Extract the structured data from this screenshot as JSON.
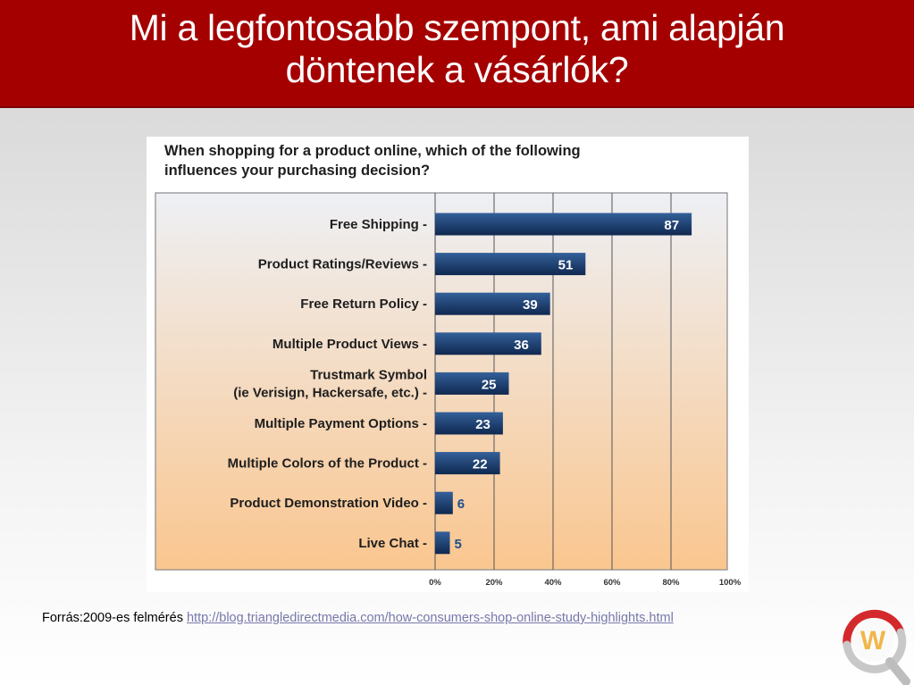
{
  "slide": {
    "title_line1": "Mi a legfontosabb szempont, ami alapján",
    "title_line2": "döntenek a vásárlók?",
    "source_prefix": "Forrás:2009-es felmérés",
    "source_link": "http://blog.triangledirectmedia.com/how-consumers-shop-online-study-highlights.html",
    "logo_letter": "W"
  },
  "colors": {
    "title_bar": "#a50000",
    "bar_dark": "#0f2850",
    "bar_light": "#34609a",
    "small_label": "#1f4f8f",
    "plot_gradient_top": "#eef0f5",
    "plot_gradient_bottom": "#fac68f"
  },
  "chart_data": {
    "type": "bar",
    "orientation": "horizontal",
    "question_line1": "When shopping for a product online, which of the following",
    "question_line2": "influences your purchasing decision?",
    "categories": [
      [
        "Free Shipping -"
      ],
      [
        "Product Ratings/Reviews -"
      ],
      [
        "Free Return Policy -"
      ],
      [
        "Multiple Product Views -"
      ],
      [
        "Trustmark Symbol",
        "(ie Verisign, Hackersafe, etc.) -"
      ],
      [
        "Multiple Payment Options -"
      ],
      [
        "Multiple Colors of the Product -"
      ],
      [
        "Product Demonstration Video -"
      ],
      [
        "Live Chat -"
      ]
    ],
    "values": [
      87,
      51,
      39,
      36,
      25,
      23,
      22,
      6,
      5
    ],
    "xlim": [
      0,
      100
    ],
    "xticks": [
      "0%",
      "20%",
      "40%",
      "60%",
      "80%",
      "100%"
    ],
    "grid": true,
    "legend": "none"
  }
}
